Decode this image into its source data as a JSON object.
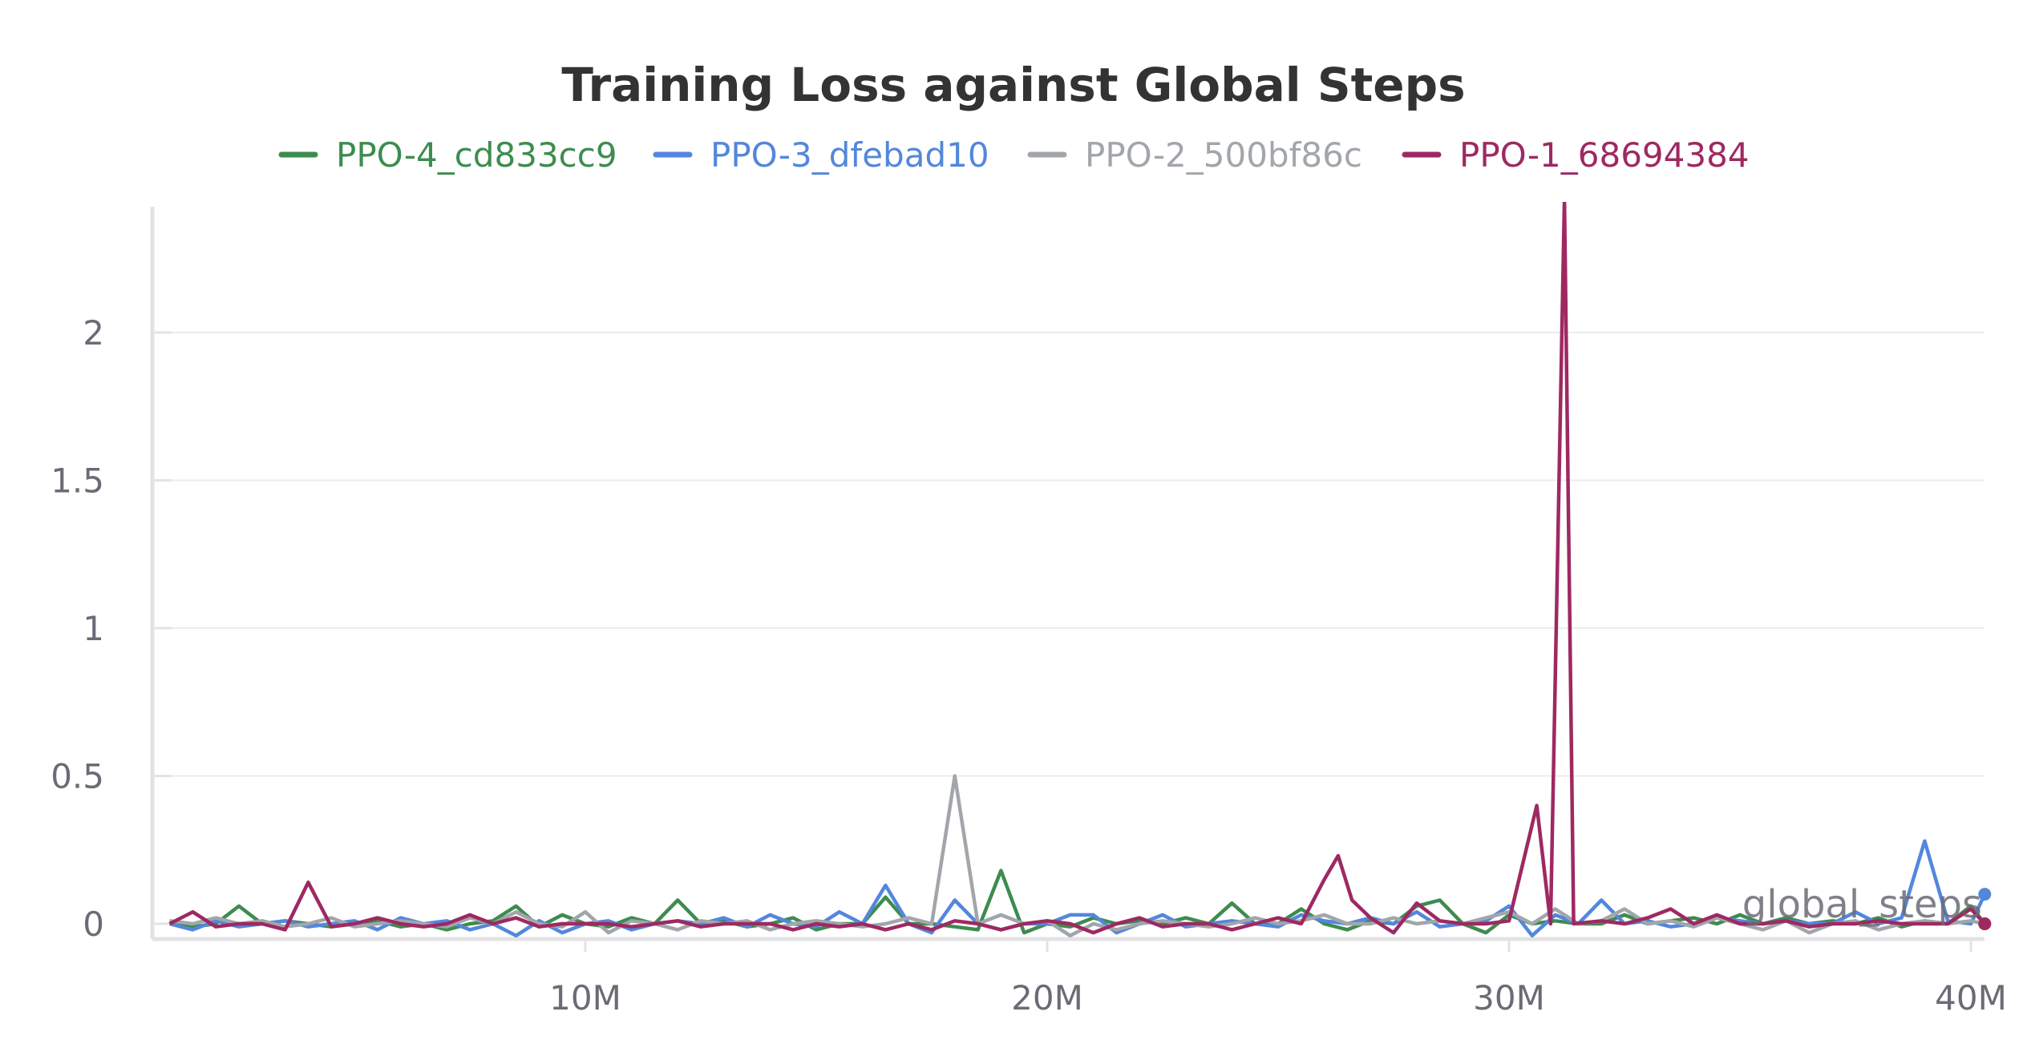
{
  "chart_data": {
    "type": "line",
    "title": "Training Loss against Global Steps",
    "xlabel": "",
    "ylabel": "",
    "watermark": "global_steps",
    "xlim": [
      800000,
      40500000
    ],
    "ylim": [
      -0.05,
      2.42
    ],
    "grid": true,
    "legend_position": "top-center",
    "x_ticks": [
      {
        "value": 10000000,
        "label": "10M"
      },
      {
        "value": 20000000,
        "label": "20M"
      },
      {
        "value": 30000000,
        "label": "30M"
      },
      {
        "value": 40000000,
        "label": "40M"
      }
    ],
    "y_ticks": [
      {
        "value": 0,
        "label": "0"
      },
      {
        "value": 0.5,
        "label": "0.5"
      },
      {
        "value": 1,
        "label": "1"
      },
      {
        "value": 1.5,
        "label": "1.5"
      },
      {
        "value": 2,
        "label": "2"
      }
    ],
    "series": [
      {
        "name": "PPO-4_cd833cc9",
        "color": "#3d8c4f",
        "x": [
          1000000,
          1500000,
          2000000,
          2500000,
          3000000,
          3500000,
          4000000,
          4500000,
          5000000,
          5500000,
          6000000,
          6500000,
          7000000,
          7500000,
          8000000,
          8500000,
          9000000,
          9500000,
          10000000,
          10500000,
          11000000,
          11500000,
          12000000,
          12500000,
          13000000,
          13500000,
          14000000,
          14500000,
          15000000,
          15500000,
          16000000,
          16500000,
          17000000,
          17500000,
          18000000,
          18500000,
          19000000,
          19500000,
          20000000,
          20500000,
          21000000,
          21500000,
          22000000,
          22500000,
          23000000,
          23500000,
          24000000,
          24500000,
          25000000,
          25500000,
          26000000,
          26500000,
          27000000,
          27500000,
          28000000,
          28500000,
          29000000,
          29500000,
          30000000,
          30500000,
          31000000,
          31500000,
          32000000,
          32500000,
          33000000,
          33500000,
          34000000,
          34500000,
          35000000,
          35500000,
          36000000,
          36500000,
          37000000,
          37500000,
          38000000,
          38500000,
          39000000,
          39500000,
          40000000,
          40300000
        ],
        "values": [
          0.01,
          -0.01,
          0.0,
          0.06,
          0.0,
          0.01,
          0.0,
          -0.01,
          0.0,
          0.01,
          -0.01,
          0.0,
          -0.02,
          0.0,
          0.01,
          0.06,
          -0.01,
          0.03,
          0.0,
          -0.01,
          0.02,
          0.0,
          0.08,
          0.0,
          0.01,
          -0.01,
          0.0,
          0.02,
          -0.02,
          0.0,
          0.0,
          0.09,
          0.0,
          0.0,
          -0.01,
          -0.02,
          0.18,
          -0.03,
          0.0,
          -0.01,
          0.02,
          0.0,
          0.01,
          0.0,
          0.02,
          0.0,
          0.07,
          0.0,
          0.0,
          0.05,
          0.0,
          -0.02,
          0.01,
          0.0,
          0.06,
          0.08,
          0.0,
          -0.03,
          0.03,
          0.0,
          0.01,
          0.0,
          0.0,
          0.03,
          0.0,
          0.01,
          0.02,
          0.0,
          0.03,
          0.0,
          0.02,
          0.0,
          0.01,
          0.0,
          0.02,
          -0.01,
          0.01,
          0.0,
          0.06,
          0.0
        ]
      },
      {
        "name": "PPO-3_dfebad10",
        "color": "#5387dd",
        "x": [
          1000000,
          1500000,
          2000000,
          2500000,
          3000000,
          3500000,
          4000000,
          4500000,
          5000000,
          5500000,
          6000000,
          6500000,
          7000000,
          7500000,
          8000000,
          8500000,
          9000000,
          9500000,
          10000000,
          10500000,
          11000000,
          11500000,
          12000000,
          12500000,
          13000000,
          13500000,
          14000000,
          14500000,
          15000000,
          15500000,
          16000000,
          16500000,
          17000000,
          17500000,
          18000000,
          18500000,
          19000000,
          19500000,
          20000000,
          20500000,
          21000000,
          21500000,
          22000000,
          22500000,
          23000000,
          23500000,
          24000000,
          24500000,
          25000000,
          25500000,
          26000000,
          26500000,
          27000000,
          27500000,
          28000000,
          28500000,
          29000000,
          29500000,
          30000000,
          30500000,
          31000000,
          31500000,
          32000000,
          32500000,
          33000000,
          33500000,
          34000000,
          34500000,
          35000000,
          35500000,
          36000000,
          36500000,
          37000000,
          37500000,
          38000000,
          38500000,
          39000000,
          39500000,
          40000000,
          40300000
        ],
        "values": [
          0.0,
          -0.02,
          0.01,
          -0.01,
          0.0,
          0.01,
          -0.01,
          0.0,
          0.01,
          -0.02,
          0.02,
          0.0,
          0.01,
          -0.02,
          0.0,
          -0.04,
          0.01,
          -0.03,
          0.0,
          0.01,
          -0.02,
          0.0,
          0.01,
          0.0,
          0.02,
          -0.01,
          0.03,
          0.0,
          -0.01,
          0.04,
          0.0,
          0.13,
          0.0,
          -0.03,
          0.08,
          0.0,
          -0.02,
          0.0,
          0.0,
          0.03,
          0.03,
          -0.03,
          0.0,
          0.03,
          -0.01,
          0.0,
          0.01,
          0.0,
          -0.01,
          0.03,
          0.01,
          0.0,
          0.02,
          0.0,
          0.04,
          -0.01,
          0.0,
          0.01,
          0.06,
          -0.04,
          0.03,
          0.0,
          0.08,
          0.0,
          0.01,
          -0.01,
          0.0,
          0.02,
          0.01,
          0.0,
          0.01,
          0.0,
          0.0,
          0.04,
          0.0,
          0.02,
          0.28,
          0.01,
          0.0,
          0.1
        ]
      },
      {
        "name": "PPO-2_500bf86c",
        "color": "#a2a6ab",
        "x": [
          1000000,
          1500000,
          2000000,
          2500000,
          3000000,
          3500000,
          4000000,
          4500000,
          5000000,
          5500000,
          6000000,
          6500000,
          7000000,
          7500000,
          8000000,
          8500000,
          9000000,
          9500000,
          10000000,
          10500000,
          11000000,
          11500000,
          12000000,
          12500000,
          13000000,
          13500000,
          14000000,
          14500000,
          15000000,
          15500000,
          16000000,
          16500000,
          17000000,
          17500000,
          18000000,
          18500000,
          19000000,
          19500000,
          20000000,
          20500000,
          21000000,
          21500000,
          22000000,
          22500000,
          23000000,
          23500000,
          24000000,
          24500000,
          25000000,
          25500000,
          26000000,
          26500000,
          27000000,
          27500000,
          28000000,
          28500000,
          29000000,
          29500000,
          30000000,
          30500000,
          31000000,
          31500000,
          32000000,
          32500000,
          33000000,
          33500000,
          34000000,
          34500000,
          35000000,
          35500000,
          36000000,
          36500000,
          37000000,
          37500000,
          38000000,
          38500000,
          39000000,
          39500000,
          40000000,
          40300000
        ],
        "values": [
          0.01,
          0.0,
          0.02,
          0.0,
          0.01,
          -0.01,
          0.0,
          0.02,
          -0.01,
          0.0,
          0.01,
          0.0,
          -0.01,
          0.02,
          0.0,
          0.04,
          0.0,
          -0.01,
          0.04,
          -0.03,
          0.01,
          0.0,
          -0.02,
          0.01,
          0.0,
          0.01,
          -0.02,
          0.0,
          0.01,
          0.0,
          -0.01,
          0.0,
          0.02,
          0.0,
          0.5,
          0.0,
          0.03,
          0.0,
          0.01,
          -0.04,
          0.0,
          -0.02,
          0.0,
          0.01,
          0.0,
          -0.01,
          0.0,
          0.02,
          0.0,
          0.01,
          0.03,
          0.0,
          0.0,
          0.02,
          0.0,
          0.01,
          0.0,
          0.02,
          0.04,
          0.0,
          0.05,
          0.0,
          0.01,
          0.05,
          0.0,
          0.01,
          -0.01,
          0.02,
          0.0,
          -0.02,
          0.01,
          -0.03,
          0.0,
          0.01,
          -0.02,
          0.0,
          0.01,
          0.0,
          0.01,
          0.0
        ]
      },
      {
        "name": "PPO-1_68694384",
        "color": "#9e2962",
        "x": [
          1000000,
          1500000,
          2000000,
          2500000,
          3000000,
          3500000,
          4000000,
          4500000,
          5000000,
          5500000,
          6000000,
          6500000,
          7000000,
          7500000,
          8000000,
          8500000,
          9000000,
          9500000,
          10000000,
          10500000,
          11000000,
          11500000,
          12000000,
          12500000,
          13000000,
          13500000,
          14000000,
          14500000,
          15000000,
          15500000,
          16000000,
          16500000,
          17000000,
          17500000,
          18000000,
          18500000,
          19000000,
          19500000,
          20000000,
          20500000,
          21000000,
          21500000,
          22000000,
          22500000,
          23000000,
          23500000,
          24000000,
          24500000,
          25000000,
          25500000,
          26000000,
          26300000,
          26600000,
          27000000,
          27500000,
          28000000,
          28500000,
          29000000,
          29500000,
          30000000,
          30600000,
          30900000,
          31200000,
          31400000,
          32000000,
          32500000,
          33000000,
          33500000,
          34000000,
          34500000,
          35000000,
          35500000,
          36000000,
          36500000,
          37000000,
          37500000,
          38000000,
          38500000,
          39000000,
          39500000,
          40000000,
          40300000
        ],
        "values": [
          0.0,
          0.04,
          -0.01,
          0.0,
          0.0,
          -0.02,
          0.14,
          -0.01,
          0.0,
          0.02,
          0.0,
          -0.01,
          0.0,
          0.03,
          0.0,
          0.02,
          -0.01,
          0.0,
          0.0,
          0.0,
          -0.01,
          0.0,
          0.01,
          -0.01,
          0.0,
          0.0,
          0.0,
          -0.02,
          0.0,
          -0.01,
          0.0,
          -0.02,
          0.0,
          -0.02,
          0.01,
          0.0,
          -0.02,
          0.0,
          0.01,
          0.0,
          -0.03,
          0.0,
          0.02,
          -0.01,
          0.0,
          0.0,
          -0.02,
          0.0,
          0.02,
          0.0,
          0.15,
          0.23,
          0.08,
          0.02,
          -0.03,
          0.07,
          0.01,
          0.0,
          0.0,
          0.01,
          0.4,
          0.0,
          2.45,
          0.0,
          0.01,
          0.0,
          0.02,
          0.05,
          0.0,
          0.03,
          0.0,
          0.0,
          0.01,
          -0.01,
          0.0,
          0.0,
          0.01,
          0.0,
          0.0,
          0.0,
          0.05,
          0.0
        ]
      }
    ]
  }
}
